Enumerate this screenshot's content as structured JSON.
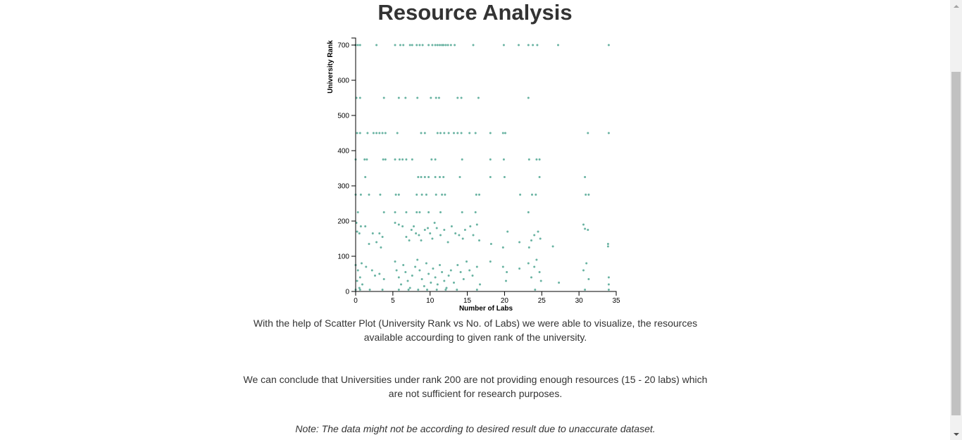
{
  "page": {
    "title": "Resource Analysis",
    "paragraph1": "With the help of Scatter Plot (University Rank vs No. of Labs) we were able to visualize, the resources available accourding to given rank of the university.",
    "paragraph2": "We can conclude that Universities under rank 200 are not providing enough resources (15 - 20 labs) which are not sufficient for research purposes.",
    "note": "Note: The data might not be according to desired result due to unaccurate dataset."
  },
  "scrollbar": {
    "up_icon": "triangle-up-icon",
    "down_icon": "triangle-down-icon"
  },
  "chart_data": {
    "type": "scatter",
    "xlabel": "Number of Labs",
    "ylabel": "University Rank",
    "xlim": [
      0,
      35
    ],
    "ylim": [
      0,
      720
    ],
    "xticks": [
      0,
      5,
      10,
      15,
      20,
      25,
      30,
      35
    ],
    "yticks": [
      0,
      100,
      200,
      300,
      400,
      500,
      600,
      700
    ],
    "grid": false,
    "point_color": "#69b3a2",
    "points": [
      [
        0,
        700
      ],
      [
        0.3,
        700
      ],
      [
        0.6,
        700
      ],
      [
        2.8,
        700
      ],
      [
        5.3,
        700
      ],
      [
        6,
        700
      ],
      [
        6.4,
        700
      ],
      [
        7.3,
        700
      ],
      [
        7.6,
        700
      ],
      [
        8.2,
        700
      ],
      [
        8.6,
        700
      ],
      [
        9,
        700
      ],
      [
        9.8,
        700
      ],
      [
        10.3,
        700
      ],
      [
        10.7,
        700
      ],
      [
        11,
        700
      ],
      [
        11.3,
        700
      ],
      [
        11.6,
        700
      ],
      [
        11.8,
        700
      ],
      [
        12.1,
        700
      ],
      [
        12.4,
        700
      ],
      [
        12.8,
        700
      ],
      [
        13.3,
        700
      ],
      [
        15.8,
        700
      ],
      [
        19.9,
        700
      ],
      [
        21.9,
        700
      ],
      [
        23.2,
        700
      ],
      [
        23.8,
        700
      ],
      [
        24.4,
        700
      ],
      [
        27.2,
        700
      ],
      [
        34,
        700
      ],
      [
        0.1,
        550
      ],
      [
        0.6,
        550
      ],
      [
        3.8,
        550
      ],
      [
        5.8,
        550
      ],
      [
        6.7,
        550
      ],
      [
        8.3,
        550
      ],
      [
        10.1,
        550
      ],
      [
        10.8,
        550
      ],
      [
        11.2,
        550
      ],
      [
        13.7,
        550
      ],
      [
        14.2,
        550
      ],
      [
        16.5,
        550
      ],
      [
        23.2,
        550
      ],
      [
        0.2,
        450
      ],
      [
        0.6,
        450
      ],
      [
        1.6,
        450
      ],
      [
        2.4,
        450
      ],
      [
        2.8,
        450
      ],
      [
        3.2,
        450
      ],
      [
        3.6,
        450
      ],
      [
        4,
        450
      ],
      [
        5.6,
        450
      ],
      [
        8.8,
        450
      ],
      [
        9.3,
        450
      ],
      [
        11,
        450
      ],
      [
        11.4,
        450
      ],
      [
        11.9,
        450
      ],
      [
        12.5,
        450
      ],
      [
        13.2,
        450
      ],
      [
        13.7,
        450
      ],
      [
        14.2,
        450
      ],
      [
        15.3,
        450
      ],
      [
        16.1,
        450
      ],
      [
        18.1,
        450
      ],
      [
        19.8,
        450
      ],
      [
        20.1,
        450
      ],
      [
        31.2,
        450
      ],
      [
        34,
        450
      ],
      [
        0,
        375
      ],
      [
        1.2,
        375
      ],
      [
        1.5,
        375
      ],
      [
        3.7,
        375
      ],
      [
        4,
        375
      ],
      [
        5.3,
        375
      ],
      [
        5.9,
        375
      ],
      [
        6.3,
        375
      ],
      [
        6.8,
        375
      ],
      [
        7.6,
        375
      ],
      [
        10.2,
        375
      ],
      [
        10.7,
        375
      ],
      [
        14.3,
        375
      ],
      [
        18.1,
        375
      ],
      [
        19.9,
        375
      ],
      [
        23.3,
        375
      ],
      [
        24.3,
        375
      ],
      [
        24.7,
        375
      ],
      [
        1.3,
        325
      ],
      [
        8.4,
        325
      ],
      [
        8.8,
        325
      ],
      [
        9.3,
        325
      ],
      [
        9.8,
        325
      ],
      [
        10.7,
        325
      ],
      [
        11.3,
        325
      ],
      [
        11.8,
        325
      ],
      [
        14,
        325
      ],
      [
        18.1,
        325
      ],
      [
        20,
        325
      ],
      [
        24.7,
        325
      ],
      [
        30.8,
        325
      ],
      [
        0,
        275
      ],
      [
        0.7,
        275
      ],
      [
        1.8,
        275
      ],
      [
        3.3,
        275
      ],
      [
        5.4,
        275
      ],
      [
        5.8,
        275
      ],
      [
        8.2,
        275
      ],
      [
        8.9,
        275
      ],
      [
        9.5,
        275
      ],
      [
        10.8,
        275
      ],
      [
        11.6,
        275
      ],
      [
        12,
        275
      ],
      [
        16.2,
        275
      ],
      [
        16.6,
        275
      ],
      [
        22.1,
        275
      ],
      [
        23.7,
        275
      ],
      [
        24.2,
        275
      ],
      [
        30.9,
        275
      ],
      [
        31.3,
        275
      ],
      [
        0.3,
        225
      ],
      [
        3.8,
        225
      ],
      [
        5.3,
        225
      ],
      [
        6.8,
        225
      ],
      [
        8.2,
        225
      ],
      [
        8.6,
        225
      ],
      [
        9.8,
        225
      ],
      [
        11.4,
        225
      ],
      [
        14.3,
        225
      ],
      [
        16.1,
        225
      ],
      [
        23.2,
        225
      ],
      [
        0.1,
        195
      ],
      [
        0.2,
        170
      ],
      [
        0.7,
        185
      ],
      [
        1.3,
        185
      ],
      [
        0.5,
        165
      ],
      [
        1.8,
        135
      ],
      [
        2.3,
        165
      ],
      [
        3.2,
        165
      ],
      [
        3.6,
        155
      ],
      [
        2.8,
        140
      ],
      [
        3.4,
        125
      ],
      [
        5.3,
        195
      ],
      [
        5.8,
        190
      ],
      [
        6.3,
        185
      ],
      [
        6.8,
        155
      ],
      [
        7.2,
        145
      ],
      [
        7.5,
        175
      ],
      [
        7.8,
        185
      ],
      [
        8.1,
        165
      ],
      [
        8.5,
        160
      ],
      [
        8.8,
        145
      ],
      [
        9.3,
        175
      ],
      [
        9.7,
        180
      ],
      [
        10,
        165
      ],
      [
        10.3,
        150
      ],
      [
        10.6,
        195
      ],
      [
        10.9,
        180
      ],
      [
        11.4,
        160
      ],
      [
        11.9,
        175
      ],
      [
        12.4,
        140
      ],
      [
        12.9,
        185
      ],
      [
        13.4,
        165
      ],
      [
        13.9,
        160
      ],
      [
        14.4,
        150
      ],
      [
        14.7,
        175
      ],
      [
        15.4,
        185
      ],
      [
        15.8,
        160
      ],
      [
        16.3,
        190
      ],
      [
        16.6,
        145
      ],
      [
        18.2,
        135
      ],
      [
        19.8,
        125
      ],
      [
        20.4,
        170
      ],
      [
        22,
        140
      ],
      [
        23.3,
        125
      ],
      [
        23.6,
        145
      ],
      [
        24,
        160
      ],
      [
        24.5,
        170
      ],
      [
        24.8,
        150
      ],
      [
        26.5,
        128
      ],
      [
        30.6,
        190
      ],
      [
        30.8,
        178
      ],
      [
        31.2,
        175
      ],
      [
        33.9,
        135
      ],
      [
        33.9,
        128
      ],
      [
        0,
        75
      ],
      [
        0.3,
        60
      ],
      [
        0.6,
        40
      ],
      [
        0.9,
        20
      ],
      [
        0.2,
        30
      ],
      [
        0.5,
        10
      ],
      [
        0.8,
        80
      ],
      [
        1.4,
        70
      ],
      [
        2.2,
        60
      ],
      [
        2.6,
        45
      ],
      [
        3.2,
        50
      ],
      [
        3.8,
        35
      ],
      [
        5.3,
        85
      ],
      [
        5.5,
        60
      ],
      [
        5.8,
        40
      ],
      [
        6.1,
        20
      ],
      [
        6.4,
        75
      ],
      [
        6.7,
        55
      ],
      [
        7,
        30
      ],
      [
        7.3,
        10
      ],
      [
        7.6,
        45
      ],
      [
        8,
        70
      ],
      [
        8.3,
        90
      ],
      [
        8.6,
        60
      ],
      [
        8.9,
        35
      ],
      [
        9.2,
        15
      ],
      [
        9.5,
        80
      ],
      [
        9.8,
        50
      ],
      [
        10.1,
        25
      ],
      [
        10.4,
        65
      ],
      [
        10.7,
        40
      ],
      [
        11,
        20
      ],
      [
        11.3,
        75
      ],
      [
        11.6,
        55
      ],
      [
        11.9,
        30
      ],
      [
        12.2,
        10
      ],
      [
        12.5,
        45
      ],
      [
        12.8,
        60
      ],
      [
        13.2,
        25
      ],
      [
        13.7,
        75
      ],
      [
        14.1,
        55
      ],
      [
        14.5,
        35
      ],
      [
        14.9,
        85
      ],
      [
        15.3,
        60
      ],
      [
        15.7,
        45
      ],
      [
        16.3,
        70
      ],
      [
        16.7,
        20
      ],
      [
        18.1,
        85
      ],
      [
        19.8,
        70
      ],
      [
        20.3,
        55
      ],
      [
        20.2,
        30
      ],
      [
        22,
        65
      ],
      [
        23.2,
        80
      ],
      [
        23.6,
        40
      ],
      [
        24,
        70
      ],
      [
        24.3,
        90
      ],
      [
        24.7,
        55
      ],
      [
        24.9,
        30
      ],
      [
        27.3,
        25
      ],
      [
        30.6,
        60
      ],
      [
        31,
        80
      ],
      [
        31.3,
        35
      ],
      [
        34,
        40
      ],
      [
        34,
        20
      ],
      [
        0,
        5
      ],
      [
        0.6,
        5
      ],
      [
        1.9,
        5
      ],
      [
        3.6,
        5
      ],
      [
        5.8,
        5
      ],
      [
        7.1,
        5
      ],
      [
        8.4,
        5
      ],
      [
        9.6,
        5
      ],
      [
        10.9,
        5
      ],
      [
        12.1,
        5
      ],
      [
        13.6,
        5
      ],
      [
        16.3,
        5
      ],
      [
        24.1,
        5
      ],
      [
        30.8,
        5
      ],
      [
        34,
        5
      ]
    ]
  }
}
